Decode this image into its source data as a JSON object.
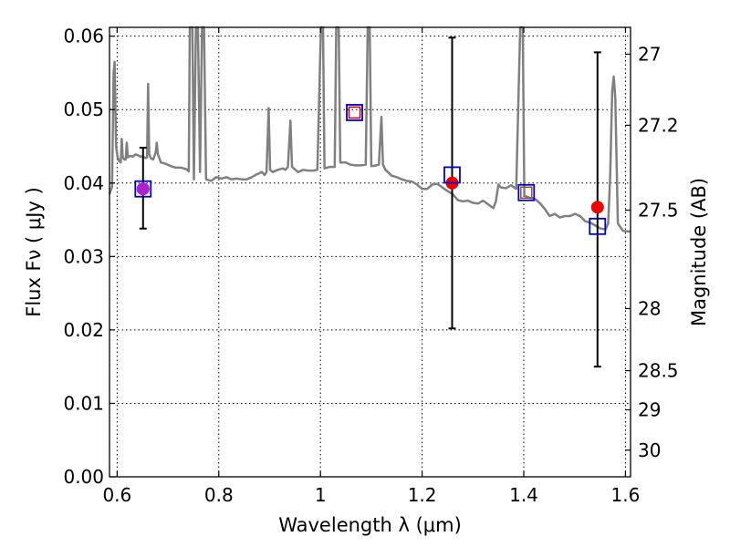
{
  "chart_data": {
    "type": "scatter",
    "xlabel": "Wavelength  λ (μm)",
    "ylabel": "Flux  Fν ( μJy )",
    "ylabel_right": "Magnitude (AB)",
    "xlim": [
      0.585,
      1.61
    ],
    "ylim": [
      0.0,
      0.0612
    ],
    "grid": true,
    "x_ticks": [
      {
        "value": 0.6,
        "label": "0.6"
      },
      {
        "value": 0.8,
        "label": "0.8"
      },
      {
        "value": 1.0,
        "label": "1"
      },
      {
        "value": 1.2,
        "label": "1.2"
      },
      {
        "value": 1.4,
        "label": "1.4"
      },
      {
        "value": 1.6,
        "label": "1.6"
      }
    ],
    "y_ticks": [
      {
        "value": 0.0,
        "label": "0.00"
      },
      {
        "value": 0.01,
        "label": "0.01"
      },
      {
        "value": 0.02,
        "label": "0.02"
      },
      {
        "value": 0.03,
        "label": "0.03"
      },
      {
        "value": 0.04,
        "label": "0.04"
      },
      {
        "value": 0.05,
        "label": "0.05"
      },
      {
        "value": 0.06,
        "label": "0.06"
      }
    ],
    "mag_ticks": [
      {
        "value": 27,
        "label": "27"
      },
      {
        "value": 27.2,
        "label": "27.2"
      },
      {
        "value": 27.5,
        "label": "27.5"
      },
      {
        "value": 28,
        "label": "28"
      },
      {
        "value": 28.5,
        "label": "28.5"
      },
      {
        "value": 29,
        "label": "29"
      },
      {
        "value": 30,
        "label": "30"
      }
    ],
    "spectrum": {
      "color": "#808080",
      "points": [
        [
          0.585,
          0.0385
        ],
        [
          0.59,
          0.0395
        ],
        [
          0.593,
          0.055
        ],
        [
          0.595,
          0.0565
        ],
        [
          0.598,
          0.045
        ],
        [
          0.601,
          0.0435
        ],
        [
          0.604,
          0.043
        ],
        [
          0.607,
          0.0428
        ],
        [
          0.609,
          0.046
        ],
        [
          0.611,
          0.0435
        ],
        [
          0.614,
          0.0432
        ],
        [
          0.617,
          0.0432
        ],
        [
          0.619,
          0.0455
        ],
        [
          0.621,
          0.0435
        ],
        [
          0.626,
          0.0437
        ],
        [
          0.631,
          0.0436
        ],
        [
          0.636,
          0.0439
        ],
        [
          0.641,
          0.0438
        ],
        [
          0.646,
          0.0436
        ],
        [
          0.651,
          0.0436
        ],
        [
          0.656,
          0.0434
        ],
        [
          0.659,
          0.0435
        ],
        [
          0.661,
          0.0535
        ],
        [
          0.663,
          0.044
        ],
        [
          0.666,
          0.0434
        ],
        [
          0.671,
          0.0432
        ],
        [
          0.676,
          0.0442
        ],
        [
          0.678,
          0.0455
        ],
        [
          0.68,
          0.044
        ],
        [
          0.686,
          0.0428
        ],
        [
          0.696,
          0.0426
        ],
        [
          0.706,
          0.0423
        ],
        [
          0.716,
          0.0421
        ],
        [
          0.726,
          0.0421
        ],
        [
          0.736,
          0.0419
        ],
        [
          0.741,
          0.0416
        ],
        [
          0.743,
          0.0612
        ],
        [
          0.748,
          0.0612
        ],
        [
          0.751,
          0.0405
        ],
        [
          0.755,
          0.0612
        ],
        [
          0.759,
          0.0612
        ],
        [
          0.763,
          0.0415
        ],
        [
          0.767,
          0.0612
        ],
        [
          0.771,
          0.0612
        ],
        [
          0.775,
          0.0405
        ],
        [
          0.785,
          0.0403
        ],
        [
          0.795,
          0.0408
        ],
        [
          0.805,
          0.0406
        ],
        [
          0.815,
          0.0408
        ],
        [
          0.825,
          0.0405
        ],
        [
          0.835,
          0.0406
        ],
        [
          0.845,
          0.0405
        ],
        [
          0.855,
          0.0405
        ],
        [
          0.865,
          0.0408
        ],
        [
          0.875,
          0.0412
        ],
        [
          0.885,
          0.0415
        ],
        [
          0.89,
          0.0411
        ],
        [
          0.894,
          0.0415
        ],
        [
          0.898,
          0.0502
        ],
        [
          0.901,
          0.0418
        ],
        [
          0.906,
          0.0415
        ],
        [
          0.916,
          0.0418
        ],
        [
          0.926,
          0.042
        ],
        [
          0.931,
          0.0418
        ],
        [
          0.936,
          0.0422
        ],
        [
          0.941,
          0.0485
        ],
        [
          0.944,
          0.0422
        ],
        [
          0.956,
          0.0415
        ],
        [
          0.966,
          0.0418
        ],
        [
          0.976,
          0.0417
        ],
        [
          0.986,
          0.0417
        ],
        [
          0.994,
          0.0418
        ],
        [
          1.001,
          0.0612
        ],
        [
          1.005,
          0.0612
        ],
        [
          1.008,
          0.042
        ],
        [
          1.018,
          0.0422
        ],
        [
          1.028,
          0.0422
        ],
        [
          1.031,
          0.0612
        ],
        [
          1.036,
          0.0612
        ],
        [
          1.039,
          0.0428
        ],
        [
          1.049,
          0.0428
        ],
        [
          1.059,
          0.0425
        ],
        [
          1.069,
          0.0424
        ],
        [
          1.079,
          0.0424
        ],
        [
          1.089,
          0.0425
        ],
        [
          1.093,
          0.0612
        ],
        [
          1.097,
          0.0612
        ],
        [
          1.1,
          0.0423
        ],
        [
          1.11,
          0.0424
        ],
        [
          1.115,
          0.0425
        ],
        [
          1.12,
          0.049
        ],
        [
          1.123,
          0.0425
        ],
        [
          1.128,
          0.0418
        ],
        [
          1.14,
          0.041
        ],
        [
          1.15,
          0.0408
        ],
        [
          1.16,
          0.0405
        ],
        [
          1.17,
          0.0403
        ],
        [
          1.18,
          0.0402
        ],
        [
          1.19,
          0.0398
        ],
        [
          1.2,
          0.0392
        ],
        [
          1.21,
          0.0392
        ],
        [
          1.22,
          0.0398
        ],
        [
          1.23,
          0.0399
        ],
        [
          1.24,
          0.0394
        ],
        [
          1.25,
          0.0389
        ],
        [
          1.26,
          0.0385
        ],
        [
          1.27,
          0.0377
        ],
        [
          1.28,
          0.0375
        ],
        [
          1.29,
          0.0376
        ],
        [
          1.3,
          0.0373
        ],
        [
          1.31,
          0.0372
        ],
        [
          1.32,
          0.0376
        ],
        [
          1.33,
          0.0371
        ],
        [
          1.34,
          0.0366
        ],
        [
          1.345,
          0.0375
        ],
        [
          1.35,
          0.0398
        ],
        [
          1.355,
          0.0394
        ],
        [
          1.365,
          0.0393
        ],
        [
          1.375,
          0.0397
        ],
        [
          1.385,
          0.0392
        ],
        [
          1.393,
          0.0612
        ],
        [
          1.398,
          0.0612
        ],
        [
          1.401,
          0.0383
        ],
        [
          1.411,
          0.038
        ],
        [
          1.421,
          0.0379
        ],
        [
          1.431,
          0.0373
        ],
        [
          1.441,
          0.0365
        ],
        [
          1.451,
          0.0355
        ],
        [
          1.461,
          0.0358
        ],
        [
          1.471,
          0.0353
        ],
        [
          1.481,
          0.0355
        ],
        [
          1.491,
          0.0355
        ],
        [
          1.501,
          0.0358
        ],
        [
          1.511,
          0.0355
        ],
        [
          1.521,
          0.0348
        ],
        [
          1.531,
          0.0346
        ],
        [
          1.541,
          0.0342
        ],
        [
          1.551,
          0.0338
        ],
        [
          1.561,
          0.0337
        ],
        [
          1.566,
          0.0345
        ],
        [
          1.57,
          0.041
        ],
        [
          1.574,
          0.0525
        ],
        [
          1.577,
          0.0545
        ],
        [
          1.58,
          0.0515
        ],
        [
          1.585,
          0.0345
        ],
        [
          1.595,
          0.0335
        ],
        [
          1.605,
          0.0334
        ],
        [
          1.61,
          0.0334
        ]
      ]
    },
    "model_points": [
      {
        "x": 0.651,
        "y": 0.0392,
        "color": "#0000cc"
      },
      {
        "x": 1.067,
        "y": 0.0496,
        "color": "#0000cc"
      },
      {
        "x": 1.259,
        "y": 0.0411,
        "color": "#0000cc"
      },
      {
        "x": 1.405,
        "y": 0.0387,
        "color": "#0000cc"
      },
      {
        "x": 1.545,
        "y": 0.0341,
        "color": "#0000cc"
      }
    ],
    "observed_points": [
      {
        "x": 0.651,
        "y": 0.0392,
        "yerr_low": 0.0338,
        "yerr_high": 0.0448,
        "color": "#ee0000"
      },
      {
        "x": 1.259,
        "y": 0.04,
        "yerr_low": 0.0202,
        "yerr_high": 0.0598,
        "color": "#ee0000"
      },
      {
        "x": 1.545,
        "y": 0.0367,
        "yerr_low": 0.015,
        "yerr_high": 0.0578,
        "color": "#ee0000"
      }
    ],
    "filter_markers": [
      {
        "x": 1.067,
        "y": 0.0496,
        "color": "#cc0000"
      },
      {
        "x": 1.405,
        "y": 0.0387,
        "color": "#a0522d"
      }
    ],
    "highlight_marker": {
      "x": 0.651,
      "y": 0.0392,
      "color": "#aa22cc"
    }
  }
}
